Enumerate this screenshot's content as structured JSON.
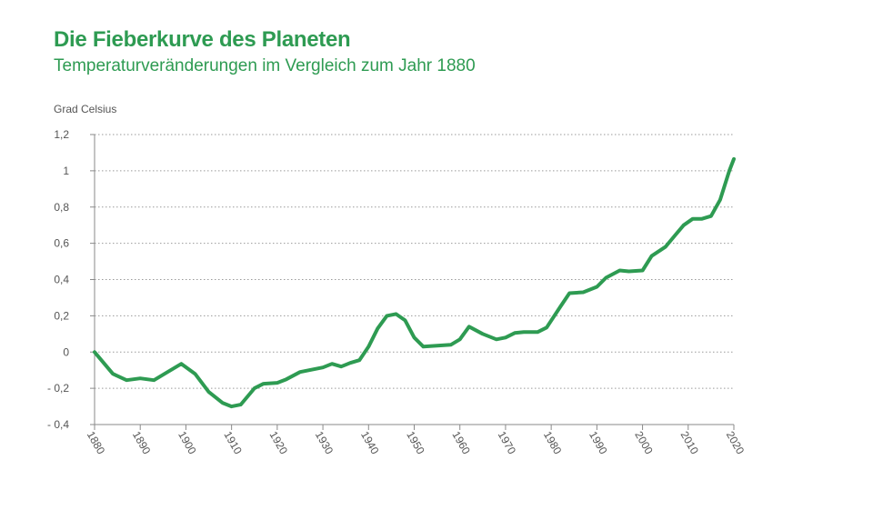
{
  "chart_data": {
    "type": "line",
    "title": "Die Fieberkurve des Planeten",
    "subtitle": "Temperaturveränderungen im Vergleich zum Jahr 1880",
    "ylabel": "Grad Celsius",
    "xlabel": "",
    "xlim": [
      1880,
      2020
    ],
    "ylim": [
      -0.4,
      1.2
    ],
    "grid": true,
    "legend": "none",
    "line_color": "#2e9b52",
    "y_ticks": [
      {
        "value": 1.2,
        "label": "1,2"
      },
      {
        "value": 1.0,
        "label": "1"
      },
      {
        "value": 0.8,
        "label": "0,8"
      },
      {
        "value": 0.6,
        "label": "0,6"
      },
      {
        "value": 0.4,
        "label": "0,4"
      },
      {
        "value": 0.2,
        "label": "0,2"
      },
      {
        "value": 0.0,
        "label": "0"
      },
      {
        "value": -0.2,
        "label": "- 0,2"
      },
      {
        "value": -0.4,
        "label": "- 0,4"
      }
    ],
    "x_ticks": [
      {
        "value": 1880,
        "label": "1880"
      },
      {
        "value": 1890,
        "label": "1890"
      },
      {
        "value": 1900,
        "label": "1900"
      },
      {
        "value": 1910,
        "label": "1910"
      },
      {
        "value": 1920,
        "label": "1920"
      },
      {
        "value": 1930,
        "label": "1930"
      },
      {
        "value": 1940,
        "label": "1940"
      },
      {
        "value": 1950,
        "label": "1950"
      },
      {
        "value": 1960,
        "label": "1960"
      },
      {
        "value": 1970,
        "label": "1970"
      },
      {
        "value": 1980,
        "label": "1980"
      },
      {
        "value": 1990,
        "label": "1990"
      },
      {
        "value": 2000,
        "label": "2000"
      },
      {
        "value": 2010,
        "label": "2010"
      },
      {
        "value": 2020,
        "label": "2020"
      }
    ],
    "series": [
      {
        "x": [
          1880,
          1882,
          1884,
          1887,
          1890,
          1893,
          1896,
          1899,
          1902,
          1905,
          1908,
          1910,
          1912,
          1915,
          1917,
          1920,
          1922,
          1925,
          1928,
          1930,
          1932,
          1934,
          1936,
          1938,
          1940,
          1942,
          1944,
          1946,
          1948,
          1950,
          1952,
          1955,
          1958,
          1960,
          1962,
          1965,
          1968,
          1970,
          1972,
          1974,
          1977,
          1979,
          1982,
          1984,
          1987,
          1990,
          1992,
          1995,
          1997,
          2000,
          2002,
          2005,
          2007,
          2009,
          2011,
          2013,
          2015,
          2017,
          2019,
          2020
        ],
        "y": [
          0.0,
          -0.06,
          -0.12,
          -0.155,
          -0.145,
          -0.155,
          -0.11,
          -0.065,
          -0.12,
          -0.22,
          -0.28,
          -0.3,
          -0.29,
          -0.2,
          -0.175,
          -0.17,
          -0.15,
          -0.11,
          -0.095,
          -0.085,
          -0.065,
          -0.08,
          -0.06,
          -0.045,
          0.03,
          0.13,
          0.2,
          0.21,
          0.175,
          0.08,
          0.03,
          0.035,
          0.04,
          0.07,
          0.14,
          0.1,
          0.07,
          0.08,
          0.105,
          0.11,
          0.11,
          0.135,
          0.25,
          0.325,
          0.33,
          0.36,
          0.41,
          0.45,
          0.445,
          0.45,
          0.53,
          0.58,
          0.64,
          0.7,
          0.735,
          0.735,
          0.75,
          0.84,
          1.0,
          1.065
        ]
      }
    ]
  }
}
